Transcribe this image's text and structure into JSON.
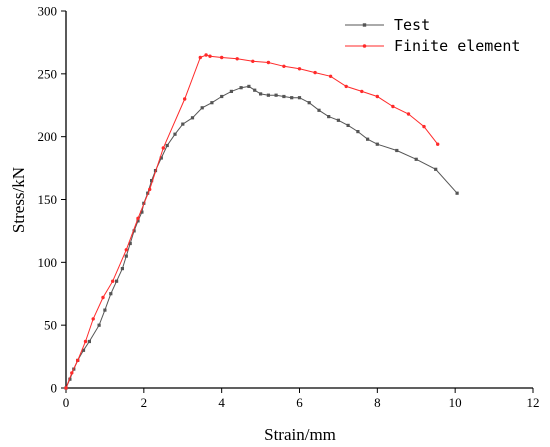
{
  "chart_data": {
    "type": "line",
    "xlabel": "Strain/mm",
    "ylabel": "Stress/kN",
    "xlim": [
      0,
      12
    ],
    "ylim": [
      0,
      300
    ],
    "xticks": [
      0,
      2,
      4,
      6,
      8,
      10,
      12
    ],
    "yticks": [
      0,
      50,
      100,
      150,
      200,
      250,
      300
    ],
    "grid": false,
    "legend_position": "top-right",
    "series": [
      {
        "name": "Test",
        "color": "#555555",
        "marker": "square",
        "x": [
          0,
          0.1,
          0.2,
          0.3,
          0.45,
          0.6,
          0.85,
          1.0,
          1.15,
          1.3,
          1.45,
          1.55,
          1.65,
          1.75,
          1.85,
          1.95,
          2.0,
          2.1,
          2.2,
          2.3,
          2.45,
          2.6,
          2.8,
          3.0,
          3.25,
          3.5,
          3.75,
          4.0,
          4.25,
          4.5,
          4.7,
          4.85,
          5.0,
          5.2,
          5.4,
          5.6,
          5.8,
          6.0,
          6.25,
          6.5,
          6.75,
          7.0,
          7.25,
          7.5,
          7.75,
          8.0,
          8.5,
          9.0,
          9.5,
          10.05
        ],
        "y": [
          0,
          7,
          15,
          22,
          30,
          37,
          50,
          62,
          75,
          85,
          95,
          105,
          115,
          125,
          133,
          140,
          147,
          155,
          165,
          173,
          183,
          193,
          202,
          210,
          215,
          223,
          227,
          232,
          236,
          239,
          240,
          237,
          234,
          233,
          233,
          232,
          231,
          231,
          227,
          221,
          216,
          213,
          209,
          204,
          198,
          194,
          189,
          182,
          174,
          155
        ]
      },
      {
        "name": "Finite element",
        "color": "#ff2a2a",
        "marker": "dot",
        "x": [
          0,
          0.15,
          0.3,
          0.5,
          0.7,
          0.95,
          1.2,
          1.55,
          1.85,
          2.15,
          2.5,
          3.05,
          3.45,
          3.6,
          3.7,
          4.0,
          4.4,
          4.8,
          5.2,
          5.6,
          6.0,
          6.4,
          6.8,
          7.2,
          7.6,
          8.0,
          8.4,
          8.8,
          9.2,
          9.55
        ],
        "y": [
          0,
          12,
          22,
          37,
          55,
          72,
          85,
          110,
          135,
          158,
          191,
          230,
          263,
          265,
          264,
          263,
          262,
          260,
          259,
          256,
          254,
          251,
          248,
          240,
          236,
          232,
          224,
          218,
          208,
          194
        ]
      }
    ]
  }
}
